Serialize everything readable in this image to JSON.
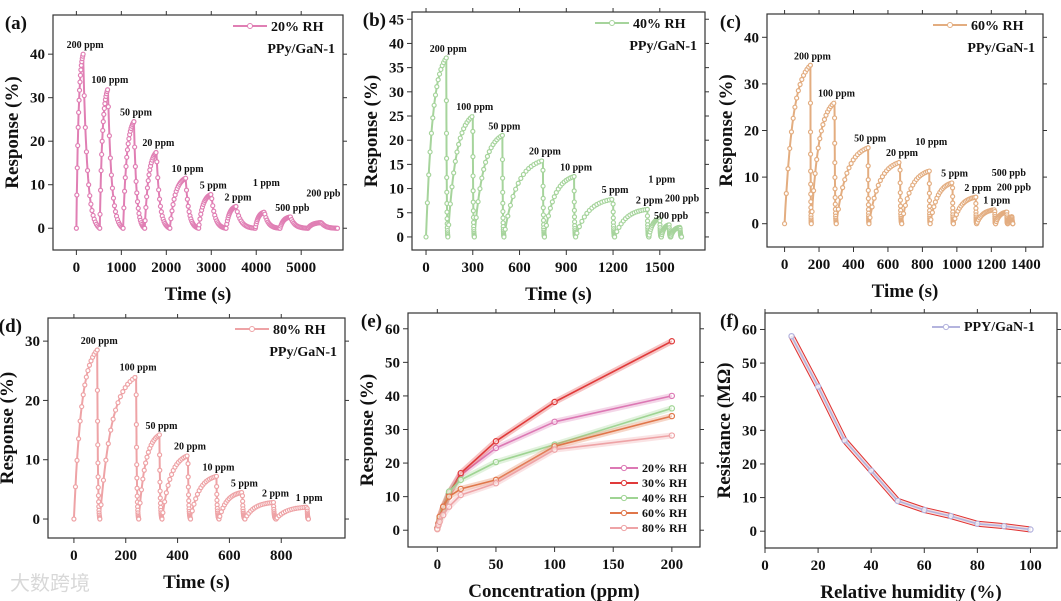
{
  "watermark": "大数跨境",
  "chart_data": [
    {
      "panel": "(a)",
      "type": "line",
      "xlabel": "Time (s)",
      "ylabel": "Response (%)",
      "xlim": [
        -520,
        5930
      ],
      "ylim": [
        -5,
        49
      ],
      "xticks": [
        0,
        1000,
        2000,
        3000,
        4000,
        5000
      ],
      "yticks": [
        0,
        10,
        20,
        30,
        40
      ],
      "legend": "20% RH",
      "sample": "PPy/GaN-1",
      "color": "#e07fb4",
      "cycles": [
        {
          "label": "200 ppm",
          "start": 0,
          "peak_time": 150,
          "peak": 40,
          "end": 520
        },
        {
          "label": "100 ppm",
          "start": 520,
          "peak_time": 700,
          "peak": 32,
          "end": 1040
        },
        {
          "label": "50 ppm",
          "start": 1040,
          "peak_time": 1280,
          "peak": 24.5,
          "end": 1520
        },
        {
          "label": "20 ppm",
          "start": 1520,
          "peak_time": 1780,
          "peak": 17.5,
          "end": 2080
        },
        {
          "label": "10 ppm",
          "start": 2080,
          "peak_time": 2430,
          "peak": 11.5,
          "end": 2720
        },
        {
          "label": "5 ppm",
          "start": 2720,
          "peak_time": 3000,
          "peak": 7.8,
          "end": 3330
        },
        {
          "label": "2 ppm",
          "start": 3330,
          "peak_time": 3550,
          "peak": 5,
          "end": 3980
        },
        {
          "label": "1 ppm",
          "start": 3980,
          "peak_time": 4180,
          "peak": 3.7,
          "end": 4530
        },
        {
          "label": "500 ppb",
          "start": 4530,
          "peak_time": 4760,
          "peak": 2.6,
          "end": 5150
        },
        {
          "label": "200 ppb",
          "start": 5150,
          "peak_time": 5450,
          "peak": 1.3,
          "end": 5820
        }
      ]
    },
    {
      "panel": "(b)",
      "type": "line",
      "xlabel": "Time (s)",
      "ylabel": "Response (%)",
      "xlim": [
        -90,
        1790
      ],
      "ylim": [
        -2.7,
        46.5
      ],
      "xticks": [
        0,
        300,
        600,
        900,
        1200,
        1500
      ],
      "yticks": [
        0,
        5,
        10,
        15,
        20,
        25,
        30,
        35,
        40,
        45
      ],
      "legend": "40% RH",
      "sample": "PPy/GaN-1",
      "color": "#a6d49c",
      "cycles": [
        {
          "label": "200 ppm",
          "start": 0,
          "peak_time": 130,
          "peak": 37,
          "end": 140
        },
        {
          "label": "100 ppm",
          "start": 140,
          "peak_time": 300,
          "peak": 25,
          "end": 310
        },
        {
          "label": "50 ppm",
          "start": 310,
          "peak_time": 490,
          "peak": 21,
          "end": 500
        },
        {
          "label": "20 ppm",
          "start": 500,
          "peak_time": 750,
          "peak": 15.8,
          "end": 760
        },
        {
          "label": "10 ppm",
          "start": 760,
          "peak_time": 950,
          "peak": 12.5,
          "end": 960
        },
        {
          "label": "5 ppm",
          "start": 960,
          "peak_time": 1200,
          "peak": 7.8,
          "end": 1210
        },
        {
          "label": "2 ppm",
          "start": 1210,
          "peak_time": 1420,
          "peak": 5.7,
          "end": 1430
        },
        {
          "label": "1 ppm",
          "start": 1430,
          "peak_time": 1500,
          "peak": 3.8,
          "end": 1510
        },
        {
          "label": "500 ppb",
          "start": 1510,
          "peak_time": 1560,
          "peak": 2.5,
          "end": 1570
        },
        {
          "label": "200 ppb",
          "start": 1570,
          "peak_time": 1630,
          "peak": 2,
          "end": 1640
        }
      ]
    },
    {
      "panel": "(c)",
      "type": "line",
      "xlabel": "Time (s)",
      "ylabel": "Response (%)",
      "xlim": [
        -102,
        1500
      ],
      "ylim": [
        -5,
        45
      ],
      "xticks": [
        0,
        200,
        400,
        600,
        800,
        1000,
        1200,
        1400
      ],
      "yticks": [
        0,
        10,
        20,
        30,
        40
      ],
      "legend": "60% RH",
      "sample": "PPy/GaN-1",
      "color": "#e3ad80",
      "cycles": [
        {
          "label": "200 ppm",
          "start": 0,
          "peak_time": 150,
          "peak": 34,
          "end": 155
        },
        {
          "label": "100 ppm",
          "start": 155,
          "peak_time": 290,
          "peak": 26,
          "end": 300
        },
        {
          "label": "50 ppm",
          "start": 300,
          "peak_time": 485,
          "peak": 16.3,
          "end": 490
        },
        {
          "label": "20 ppm",
          "start": 490,
          "peak_time": 670,
          "peak": 13.2,
          "end": 680
        },
        {
          "label": "10 ppm",
          "start": 680,
          "peak_time": 840,
          "peak": 11.3,
          "end": 845
        },
        {
          "label": "5 ppm",
          "start": 845,
          "peak_time": 975,
          "peak": 8.8,
          "end": 980
        },
        {
          "label": "2 ppm",
          "start": 980,
          "peak_time": 1110,
          "peak": 5.7,
          "end": 1115
        },
        {
          "label": "1 ppm",
          "start": 1115,
          "peak_time": 1220,
          "peak": 3,
          "end": 1225
        },
        {
          "label": "500 ppb",
          "start": 1225,
          "peak_time": 1290,
          "peak": 2.5,
          "end": 1295
        },
        {
          "label": "200 ppb",
          "start": 1295,
          "peak_time": 1320,
          "peak": 1.5,
          "end": 1325
        }
      ]
    },
    {
      "panel": "(d)",
      "type": "line",
      "xlabel": "Time (s)",
      "ylabel": "Response (%)",
      "xlim": [
        -100,
        1046
      ],
      "ylim": [
        -3.2,
        33.9
      ],
      "xticks": [
        0,
        200,
        400,
        600,
        800
      ],
      "yticks": [
        0,
        10,
        20,
        30
      ],
      "legend": "80% RH",
      "sample": "PPy/GaN-1",
      "color": "#eea3a6",
      "cycles": [
        {
          "label": "200 ppm",
          "start": 0,
          "peak_time": 90,
          "peak": 28.5,
          "end": 100
        },
        {
          "label": "100 ppm",
          "start": 100,
          "peak_time": 240,
          "peak": 24,
          "end": 250
        },
        {
          "label": "50 ppm",
          "start": 250,
          "peak_time": 330,
          "peak": 14.2,
          "end": 340
        },
        {
          "label": "20 ppm",
          "start": 340,
          "peak_time": 440,
          "peak": 10.7,
          "end": 450
        },
        {
          "label": "10 ppm",
          "start": 450,
          "peak_time": 550,
          "peak": 7.2,
          "end": 560
        },
        {
          "label": "5 ppm",
          "start": 560,
          "peak_time": 650,
          "peak": 4.5,
          "end": 660
        },
        {
          "label": "2 ppm",
          "start": 660,
          "peak_time": 770,
          "peak": 2.8,
          "end": 780
        },
        {
          "label": "1 ppm",
          "start": 780,
          "peak_time": 900,
          "peak": 2,
          "end": 905
        }
      ]
    },
    {
      "panel": "(e)",
      "type": "line",
      "xlabel": "Concentration (ppm)",
      "ylabel": "Response (%)",
      "xlim": [
        -25,
        224
      ],
      "ylim": [
        -5,
        64.7
      ],
      "xticks": [
        0,
        50,
        100,
        150,
        200
      ],
      "yticks": [
        0,
        10,
        20,
        30,
        40,
        50,
        60
      ],
      "legend_position": "bottom-right",
      "x": [
        0,
        1,
        2,
        5,
        10,
        20,
        50,
        100,
        200
      ],
      "series": [
        {
          "name": "20% RH",
          "color": "#dc78b4",
          "values": [
            0.5,
            2,
            3.5,
            6,
            11,
            16.5,
            24.5,
            32.3,
            40
          ]
        },
        {
          "name": "30% RH",
          "color": "#e03a3a",
          "values": [
            0.5,
            2,
            4,
            7,
            11,
            17,
            26.5,
            38.2,
            56.3
          ]
        },
        {
          "name": "40% RH",
          "color": "#9fd493",
          "values": [
            0.5,
            2,
            3.5,
            6,
            11.5,
            15,
            20.3,
            25.5,
            36.3
          ]
        },
        {
          "name": "60% RH",
          "color": "#e0764a",
          "values": [
            0.5,
            2,
            4,
            7,
            10,
            12.3,
            15,
            25,
            34
          ]
        },
        {
          "name": "80% RH",
          "color": "#eea3a6",
          "values": [
            0.3,
            1.5,
            2.5,
            4.5,
            7,
            10.5,
            14,
            24,
            28.2
          ]
        }
      ]
    },
    {
      "panel": "(f)",
      "type": "line",
      "xlabel": "Relative humidity (%)",
      "ylabel": "Resistance (MΩ)",
      "xlim": [
        0,
        110
      ],
      "ylim": [
        -5,
        64.9
      ],
      "xticks": [
        0,
        20,
        40,
        60,
        80,
        100
      ],
      "yticks": [
        0,
        10,
        20,
        30,
        40,
        50,
        60
      ],
      "legend_position": "top-right",
      "x": [
        10,
        20,
        30,
        40,
        50,
        60,
        70,
        80,
        90,
        100
      ],
      "series": [
        {
          "name": "PPY/GaN-1",
          "color": "#b4b4de",
          "band_color": "#e03030",
          "values": [
            58,
            43,
            27,
            18,
            9,
            6.3,
            4.5,
            2.2,
            1.5,
            0.5
          ]
        }
      ]
    }
  ]
}
